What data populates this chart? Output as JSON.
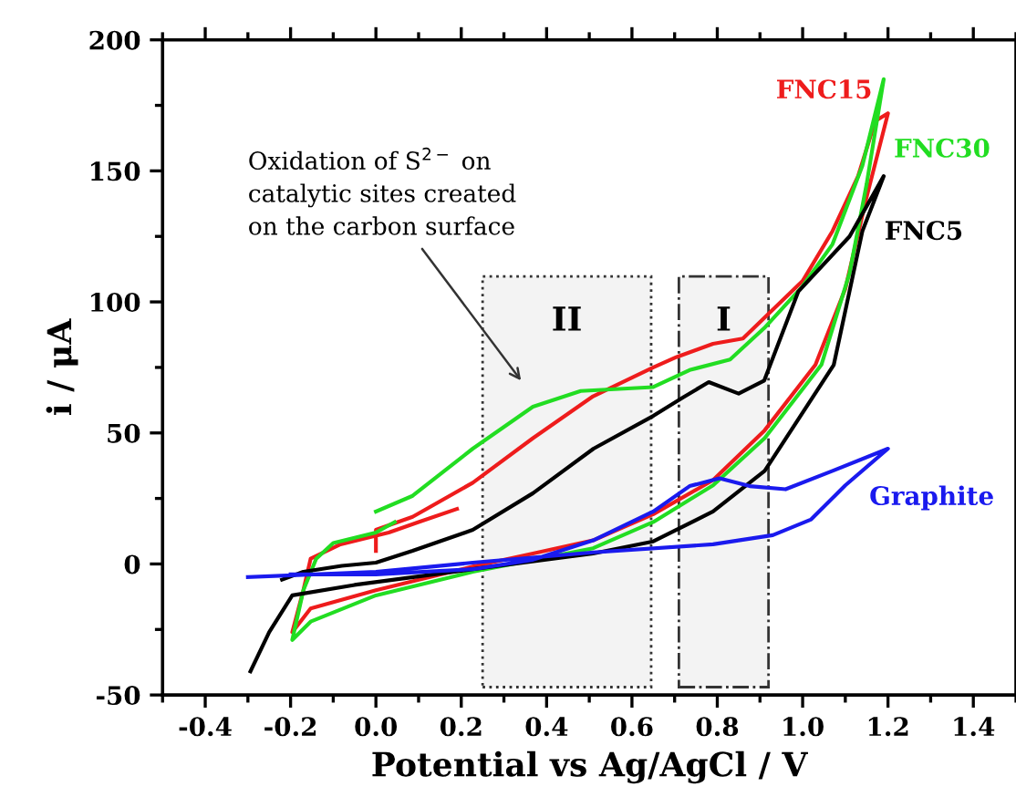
{
  "chart_data": {
    "type": "line",
    "xlabel": "Potential vs Ag/AgCl / V",
    "ylabel": "i / μA",
    "xlim": [
      -0.5,
      1.5
    ],
    "xticks": [
      -0.4,
      -0.2,
      {
        "value": 0,
        "label": "0.0"
      },
      0.2,
      0.4,
      0.6,
      0.8,
      {
        "value": 1,
        "label": "1.0"
      },
      1.2,
      1.4
    ],
    "ylim": [
      -50,
      200
    ],
    "yticks": [
      -50,
      0,
      50,
      100,
      150,
      200
    ],
    "grid": false,
    "marker": "none",
    "line_style": "solid",
    "annotations": [
      "Oxidation of S$^{2−}$ on\ncatalytic sites created\non the carbon surface"
    ],
    "bands": [
      {
        "axis": "x",
        "from": 0.25,
        "to": 0.645,
        "label": "II",
        "color": "#333333"
      },
      {
        "axis": "x",
        "from": 0.71,
        "to": 0.92,
        "label": "I",
        "color": "#333333"
      }
    ],
    "series": [
      {
        "name": "FNC15",
        "color": "#ee1c1c",
        "x": [
          0.19,
          0.1,
          0.03,
          -0.083,
          -0.153,
          -0.17,
          -0.196,
          -0.153,
          0.0,
          0.227,
          0.368,
          0.509,
          0.65,
          0.79,
          0.911,
          1.03,
          1.1,
          1.15,
          1.2,
          1.17,
          1.13,
          1.07,
          1.0,
          0.917,
          0.86,
          0.79,
          0.705,
          0.65,
          0.509,
          0.368,
          0.227,
          0.086,
          0.0,
          0.0
        ],
        "values": [
          21,
          16,
          12,
          7.5,
          2,
          -10,
          -26,
          -17,
          -10,
          -1,
          4,
          9,
          19,
          32,
          51,
          76,
          105,
          140,
          172,
          169,
          148,
          127,
          108,
          95,
          86,
          84,
          79,
          75,
          64,
          48,
          31,
          18,
          13,
          5
        ]
      },
      {
        "name": "FNC30",
        "color": "#22dd22",
        "x": [
          0.0,
          0.086,
          0.227,
          0.368,
          0.48,
          0.65,
          0.735,
          0.83,
          0.91,
          1.0,
          1.07,
          1.14,
          1.19,
          1.15,
          1.11,
          1.044,
          0.911,
          0.79,
          0.65,
          0.509,
          0.227,
          0.0,
          -0.153,
          -0.196,
          -0.17,
          -0.14,
          -0.1,
          0.0,
          0.044
        ],
        "values": [
          20,
          26,
          44,
          60,
          66,
          67.5,
          74,
          78,
          90,
          106,
          122,
          152,
          185,
          145,
          111,
          76,
          48,
          30,
          16,
          6,
          -3,
          -12,
          -22,
          -29,
          -10,
          2,
          8,
          12,
          16
        ]
      },
      {
        "name": "FNC5",
        "color": "#000000",
        "x": [
          -0.294,
          -0.25,
          -0.196,
          -0.05,
          0.227,
          0.509,
          0.65,
          0.79,
          0.911,
          1.073,
          1.14,
          1.19,
          1.11,
          0.99,
          0.91,
          0.85,
          0.78,
          0.72,
          0.65,
          0.51,
          0.368,
          0.227,
          0.086,
          0.0,
          -0.08,
          -0.17,
          -0.22
        ],
        "values": [
          -41,
          -26,
          -12,
          -8,
          -2,
          4,
          8.6,
          20,
          35.5,
          76,
          127,
          148,
          125,
          104,
          70,
          65,
          69.4,
          63.6,
          56.5,
          44,
          27,
          13,
          5,
          0.5,
          -0.7,
          -3,
          -6
        ]
      },
      {
        "name": "Graphite",
        "color": "#1a1aee",
        "x": [
          -0.3,
          0.0,
          0.227,
          0.51,
          0.79,
          0.93,
          1.02,
          1.1,
          1.2,
          1.07,
          0.96,
          0.876,
          0.805,
          0.735,
          0.65,
          0.509,
          0.368,
          0.227,
          0.0,
          -0.2
        ],
        "values": [
          -5,
          -3,
          0.5,
          4.4,
          7.5,
          11,
          17,
          30,
          44,
          35.5,
          28.5,
          29.7,
          32.7,
          29.7,
          20,
          9,
          1.6,
          -2,
          -4,
          -4
        ]
      }
    ]
  }
}
